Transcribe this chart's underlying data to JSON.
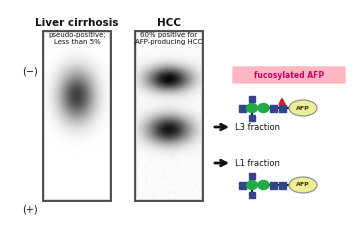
{
  "bg_color": "#ffffff",
  "title_lc": "Liver cirrhosis",
  "title_hcc": "HCC",
  "subtitle_lc": "pseudo-positive;\nLess than 5%",
  "subtitle_hcc": "60% positive for\nAFP-producing HCC",
  "label_neg": "(−)",
  "label_pos": "(+)",
  "label_l3": "L3 fraction",
  "label_l1": "L1 fraction",
  "label_fucos": "fucosylated AFP",
  "fucos_bg": "#ffb6c1",
  "green_color": "#22aa44",
  "blue_color": "#334488",
  "afp_color": "#eeee99",
  "red_color": "#cc2222",
  "arrow_color": "#111111",
  "text_color": "#111111",
  "line_color": "#000000"
}
